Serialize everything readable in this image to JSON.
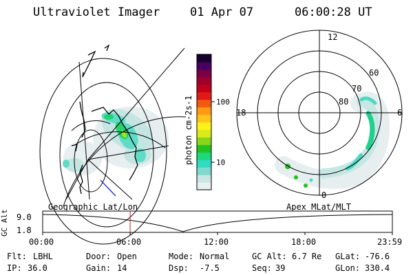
{
  "header": {
    "instrument": "Ultraviolet Imager",
    "date": "01 Apr 07",
    "time": "06:00:28 UT"
  },
  "colorbar": {
    "unit_label": "photon cm-2s-1",
    "ticks": [
      "100",
      "10"
    ],
    "colors": [
      "#e8f0f0",
      "#c8e6e4",
      "#7fd9cf",
      "#2fdcc0",
      "#1ed87a",
      "#22c21f",
      "#88d61a",
      "#d9ec18",
      "#fff21a",
      "#ffc41a",
      "#ff9a12",
      "#f25a10",
      "#e01a14",
      "#c0001a",
      "#a0002c",
      "#7a0046",
      "#4a0060",
      "#180030"
    ]
  },
  "polar": {
    "hour_labels": {
      "top": "12",
      "left": "18",
      "right": "6",
      "bottom": "0"
    },
    "lat_labels": [
      "60",
      "70",
      "80"
    ]
  },
  "timeline": {
    "left_label": "Geographic Lat/Lon",
    "right_label": "Apex MLat/MLT",
    "axis_title": "GC Alt",
    "y_ticks": [
      "9.0",
      "1.8"
    ],
    "x_ticks": [
      "00:00",
      "06:00",
      "12:00",
      "18:00",
      "23:59"
    ],
    "marker_time": "06:00",
    "marker_color": "#c81e1e"
  },
  "info": {
    "flt_label": "Flt:",
    "flt_value": "LBHL",
    "ip_label": "IP:",
    "ip_value": "36.0",
    "door_label": "Door:",
    "door_value": "Open",
    "gain_label": "Gain:",
    "gain_value": "14",
    "mode_label": "Mode:",
    "mode_value": "Normal",
    "dsp_label": "Dsp:",
    "dsp_value": "-7.5",
    "gcalt_label": "GC Alt:",
    "gcalt_value": "6.7 Re",
    "seq_label": "Seq:",
    "seq_value": "39",
    "glat_label": "GLat:",
    "glat_value": "-76.6",
    "glon_label": "GLon:",
    "glon_value": "330.4"
  }
}
